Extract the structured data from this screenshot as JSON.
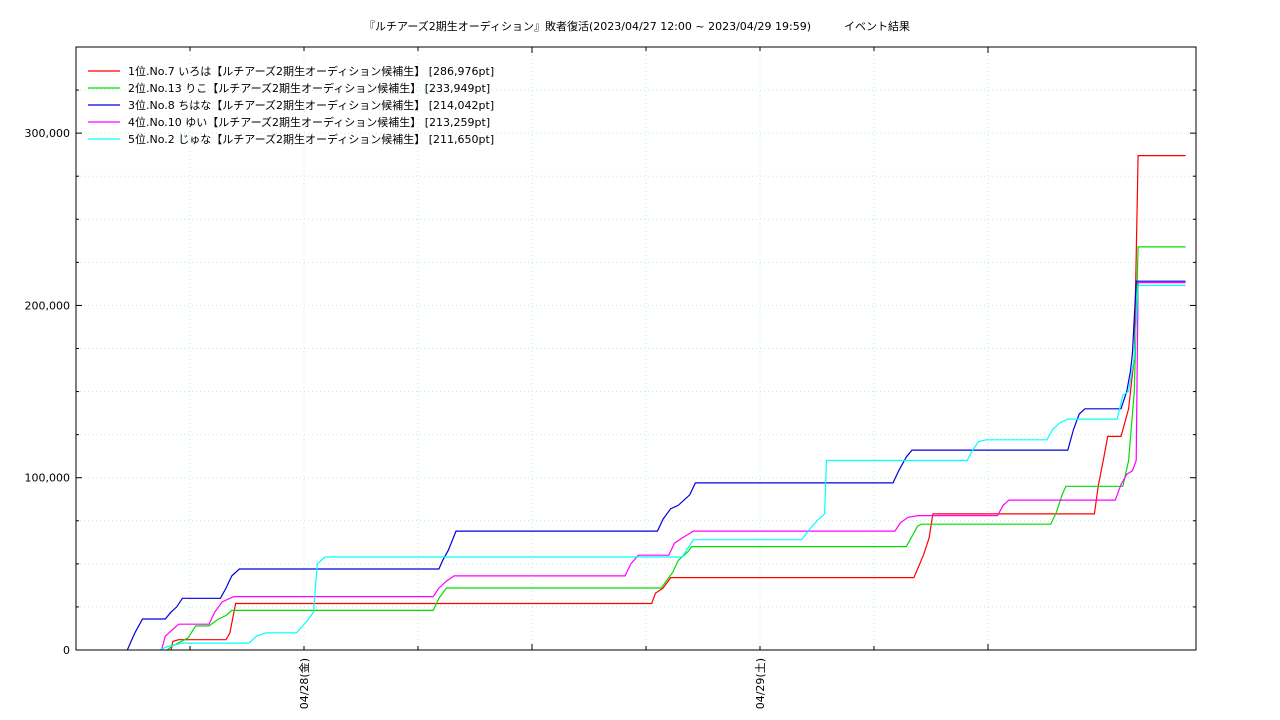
{
  "chart_data": {
    "type": "line",
    "title": "『ルチアーズ2期生オーディション』敗者復活(2023/04/27 12:00 ~ 2023/04/29 19:59)　　　イベント結果",
    "x_range_hours": [
      0,
      49.02
    ],
    "ylim": [
      0,
      350000
    ],
    "y_ticks": [
      0,
      100000,
      200000,
      300000
    ],
    "y_tick_labels": [
      "0",
      "100,000",
      "200,000",
      "300,000"
    ],
    "x_ticks": [
      {
        "hour": 12,
        "label": "04/28(金)"
      },
      {
        "hour": 36,
        "label": "04/29(土)"
      }
    ],
    "x_minor_tick_hours": [
      6,
      12,
      18,
      24,
      30,
      36,
      42,
      48
    ],
    "grid": true,
    "legend_position": "top-left",
    "series": [
      {
        "name": "1位.No.7 いろは【ルチアーズ2期生オーディション候補生】 [286,976pt]",
        "color": "#ff0000",
        "points": [
          [
            5.0,
            0
          ],
          [
            5.1,
            5000
          ],
          [
            5.4,
            6000
          ],
          [
            7.9,
            6000
          ],
          [
            8.1,
            10000
          ],
          [
            8.4,
            27000
          ],
          [
            30.3,
            27000
          ],
          [
            30.5,
            33000
          ],
          [
            30.9,
            36000
          ],
          [
            31.3,
            42000
          ],
          [
            44.1,
            42000
          ],
          [
            44.6,
            55000
          ],
          [
            44.9,
            65000
          ],
          [
            45.1,
            79000
          ],
          [
            53.6,
            79000
          ],
          [
            53.8,
            95000
          ],
          [
            54.1,
            112000
          ],
          [
            54.3,
            124000
          ],
          [
            55.0,
            124000
          ],
          [
            55.4,
            140000
          ],
          [
            55.7,
            170000
          ],
          [
            55.9,
            286976
          ],
          [
            58.4,
            286976
          ]
        ]
      },
      {
        "name": "2位.No.13 りこ【ルチアーズ2期生オーディション候補生】 [233,949pt]",
        "color": "#00dd00",
        "points": [
          [
            4.8,
            0
          ],
          [
            5.1,
            2500
          ],
          [
            5.9,
            7000
          ],
          [
            6.3,
            14000
          ],
          [
            7.0,
            14000
          ],
          [
            7.5,
            18000
          ],
          [
            7.9,
            20000
          ],
          [
            8.2,
            23000
          ],
          [
            18.8,
            23000
          ],
          [
            19.1,
            30000
          ],
          [
            19.5,
            36000
          ],
          [
            30.8,
            36000
          ],
          [
            31.4,
            45000
          ],
          [
            31.7,
            52000
          ],
          [
            32.2,
            57000
          ],
          [
            32.4,
            60000
          ],
          [
            43.7,
            60000
          ],
          [
            44.0,
            66000
          ],
          [
            44.3,
            72000
          ],
          [
            44.5,
            73000
          ],
          [
            51.3,
            73000
          ],
          [
            51.6,
            80000
          ],
          [
            51.9,
            90000
          ],
          [
            52.1,
            95000
          ],
          [
            55.1,
            95000
          ],
          [
            55.4,
            110000
          ],
          [
            55.7,
            150000
          ],
          [
            55.9,
            233949
          ],
          [
            58.4,
            233949
          ]
        ]
      },
      {
        "name": "3位.No.8 ちはな【ルチアーズ2期生オーディション候補生】 [214,042pt]",
        "color": "#0000dd",
        "points": [
          [
            2.7,
            0
          ],
          [
            2.9,
            5000
          ],
          [
            3.1,
            10000
          ],
          [
            3.5,
            18000
          ],
          [
            4.7,
            18000
          ],
          [
            5.0,
            22000
          ],
          [
            5.3,
            25000
          ],
          [
            5.6,
            30000
          ],
          [
            7.6,
            30000
          ],
          [
            7.9,
            36000
          ],
          [
            8.2,
            43000
          ],
          [
            8.6,
            47000
          ],
          [
            19.1,
            47000
          ],
          [
            19.3,
            52000
          ],
          [
            19.6,
            58000
          ],
          [
            20.0,
            69000
          ],
          [
            30.6,
            69000
          ],
          [
            30.9,
            76000
          ],
          [
            31.3,
            82000
          ],
          [
            31.7,
            84000
          ],
          [
            32.3,
            90000
          ],
          [
            32.6,
            97000
          ],
          [
            43.0,
            97000
          ],
          [
            43.3,
            104000
          ],
          [
            43.7,
            112000
          ],
          [
            44.0,
            116000
          ],
          [
            52.2,
            116000
          ],
          [
            52.5,
            128000
          ],
          [
            52.8,
            137000
          ],
          [
            53.1,
            140000
          ],
          [
            55.0,
            140000
          ],
          [
            55.3,
            150000
          ],
          [
            55.5,
            162000
          ],
          [
            55.6,
            172000
          ],
          [
            55.8,
            214042
          ],
          [
            58.4,
            214042
          ]
        ]
      },
      {
        "name": "4位.No.10 ゆい【ルチアーズ2期生オーディション候補生】 [213,259pt]",
        "color": "#ff00ff",
        "points": [
          [
            4.5,
            0
          ],
          [
            4.7,
            8000
          ],
          [
            5.1,
            12000
          ],
          [
            5.4,
            15000
          ],
          [
            7.0,
            15000
          ],
          [
            7.3,
            22000
          ],
          [
            7.7,
            28000
          ],
          [
            8.3,
            31000
          ],
          [
            18.8,
            31000
          ],
          [
            19.1,
            36000
          ],
          [
            19.5,
            40000
          ],
          [
            19.9,
            43000
          ],
          [
            28.9,
            43000
          ],
          [
            29.2,
            50000
          ],
          [
            29.6,
            55000
          ],
          [
            31.2,
            55000
          ],
          [
            31.5,
            62000
          ],
          [
            31.9,
            65000
          ],
          [
            32.5,
            69000
          ],
          [
            43.1,
            69000
          ],
          [
            43.4,
            74000
          ],
          [
            43.8,
            77000
          ],
          [
            44.3,
            78000
          ],
          [
            48.5,
            78000
          ],
          [
            48.8,
            84000
          ],
          [
            49.1,
            87000
          ],
          [
            54.7,
            87000
          ],
          [
            55.0,
            96000
          ],
          [
            55.3,
            102000
          ],
          [
            55.6,
            104000
          ],
          [
            55.8,
            110000
          ],
          [
            55.9,
            213259
          ],
          [
            58.4,
            213259
          ]
        ]
      },
      {
        "name": "5位.No.2 じゅな【ルチアーズ2期生オーディション候補生】 [211,650pt]",
        "color": "#00ffff",
        "points": [
          [
            4.4,
            0
          ],
          [
            4.8,
            2000
          ],
          [
            5.6,
            4000
          ],
          [
            9.1,
            4000
          ],
          [
            9.5,
            8000
          ],
          [
            10.0,
            10000
          ],
          [
            11.6,
            10000
          ],
          [
            12.1,
            16000
          ],
          [
            12.5,
            22000
          ],
          [
            12.7,
            50000
          ],
          [
            13.1,
            54000
          ],
          [
            31.9,
            54000
          ],
          [
            32.5,
            64000
          ],
          [
            38.2,
            64000
          ],
          [
            38.6,
            70000
          ],
          [
            39.0,
            75000
          ],
          [
            39.4,
            79000
          ],
          [
            39.5,
            110000
          ],
          [
            46.9,
            110000
          ],
          [
            47.2,
            116000
          ],
          [
            47.5,
            121000
          ],
          [
            47.9,
            122000
          ],
          [
            51.1,
            122000
          ],
          [
            51.4,
            128000
          ],
          [
            51.8,
            132000
          ],
          [
            52.2,
            134000
          ],
          [
            54.8,
            134000
          ],
          [
            55.1,
            148000
          ],
          [
            55.4,
            150000
          ],
          [
            55.7,
            170000
          ],
          [
            55.9,
            211650
          ],
          [
            58.4,
            211650
          ]
        ]
      }
    ]
  }
}
